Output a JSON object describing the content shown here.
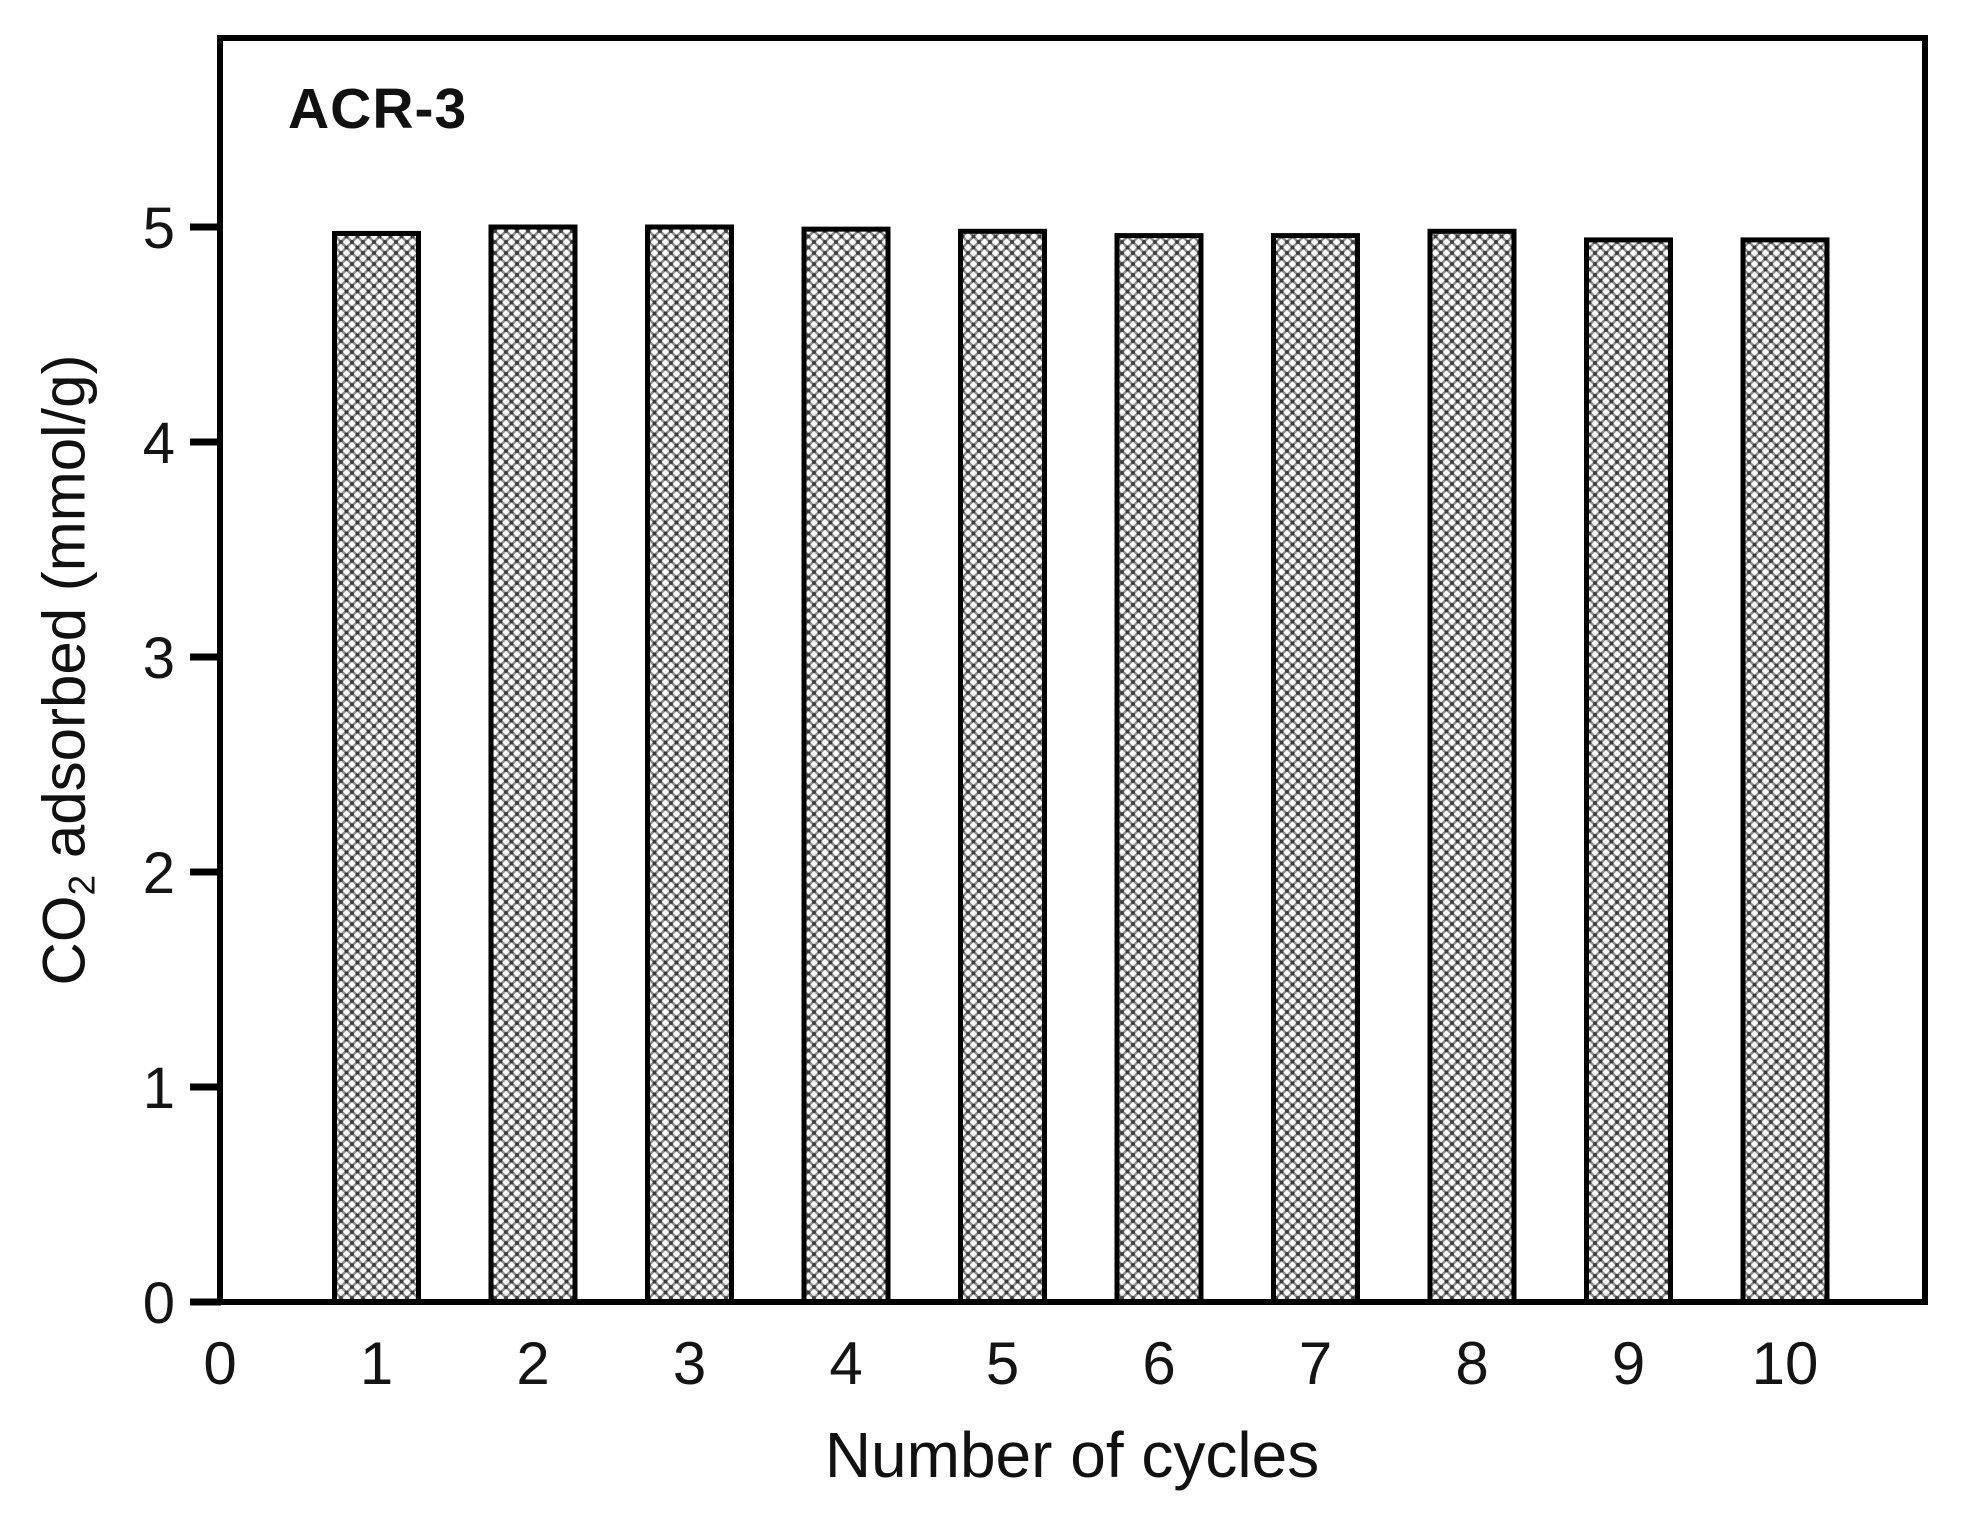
{
  "chart_data": {
    "type": "bar",
    "annotation": "ACR-3",
    "xlabel": "Number of cycles",
    "ylabel": "CO2 adsorbed (mmol/g)",
    "ylabel_parts": {
      "pre": "CO",
      "sub": "2",
      "post": " adsorbed (mmol/g)"
    },
    "categories": [
      1,
      2,
      3,
      4,
      5,
      6,
      7,
      8,
      9,
      10
    ],
    "values": [
      4.97,
      5.0,
      5.0,
      4.99,
      4.98,
      4.96,
      4.96,
      4.98,
      4.94,
      4.94
    ],
    "x_ticks": [
      0,
      1,
      2,
      3,
      4,
      5,
      6,
      7,
      8,
      9,
      10
    ],
    "y_ticks": [
      0,
      1,
      2,
      3,
      4,
      5
    ],
    "xlim": [
      0,
      10.9
    ],
    "ylim": [
      0,
      5.88
    ],
    "bar_width_units": 0.54,
    "grid": false,
    "legend": "none",
    "bar_fill_style": "diagonal-crosshatch",
    "colors": {
      "axis": "#000000",
      "bar_border": "#000000",
      "hatch_line": "#8f8f8f",
      "hatch_dot": "#3c3c3c",
      "background": "#ffffff",
      "text": "#141414"
    }
  }
}
